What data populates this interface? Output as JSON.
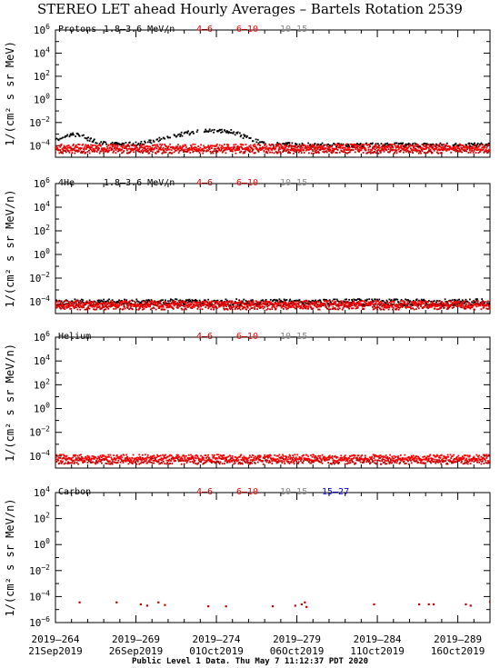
{
  "title": "STEREO LET ahead Hourly Averages – Bartels Rotation 2539",
  "footer": "Public Level 1 Data. Thu May  7 11:12:37 PDT 2020",
  "colors": {
    "black": "#000000",
    "dark_red": "#c00000",
    "red": "#ff0000",
    "gray": "#888888",
    "blue": "#0000ff"
  },
  "chart_data": [
    {
      "type": "scatter",
      "species": "Protons",
      "energy_label": "1.8–3.6 MeV/n",
      "ylabel": "1/(cm² s sr MeV)",
      "yscale": "log",
      "ylim_exp": [
        -5,
        6
      ],
      "ytick_exps": [
        6,
        4,
        2,
        0,
        -2,
        -4
      ],
      "xlim_doy": [
        264.0,
        291.0
      ],
      "legend": [
        {
          "label": "4–6",
          "color": "#c00000"
        },
        {
          "label": "6–10",
          "color": "#ff0000"
        },
        {
          "label": "10–15",
          "color": "#888888"
        }
      ],
      "series": [
        {
          "name": "1.8–3.6 MeV/n",
          "color": "#000000",
          "shape": "curve",
          "profile": [
            [
              264.0,
              -3.6
            ],
            [
              264.5,
              -3.2
            ],
            [
              265.0,
              -3.0
            ],
            [
              265.5,
              -3.1
            ],
            [
              266.0,
              -3.4
            ],
            [
              266.8,
              -3.7
            ],
            [
              267.5,
              -3.85
            ],
            [
              268.5,
              -3.9
            ],
            [
              269.5,
              -3.75
            ],
            [
              270.5,
              -3.45
            ],
            [
              271.5,
              -3.1
            ],
            [
              272.5,
              -2.85
            ],
            [
              273.5,
              -2.7
            ],
            [
              274.5,
              -2.7
            ],
            [
              275.0,
              -2.8
            ],
            [
              275.5,
              -3.1
            ],
            [
              276.2,
              -3.5
            ],
            [
              277.0,
              -3.8
            ],
            [
              278.5,
              -3.9
            ],
            [
              280.0,
              -3.95
            ],
            [
              283.0,
              -3.95
            ],
            [
              286.0,
              -3.95
            ],
            [
              289.0,
              -3.95
            ],
            [
              291.0,
              -3.95
            ]
          ]
        },
        {
          "name": "4–6",
          "color": "#c00000",
          "shape": "band",
          "y_exp": -4.4
        },
        {
          "name": "6–10",
          "color": "#ff0000",
          "shape": "band",
          "y_exp": -4.15
        }
      ]
    },
    {
      "type": "scatter",
      "species": "4He",
      "energy_label": "1.8–3.6 MeV/n",
      "ylabel": "1/(cm² s sr MeV/n)",
      "yscale": "log",
      "ylim_exp": [
        -5,
        6
      ],
      "ytick_exps": [
        6,
        4,
        2,
        0,
        -2,
        -4
      ],
      "xlim_doy": [
        264.0,
        291.0
      ],
      "legend": [
        {
          "label": "4–6",
          "color": "#c00000"
        },
        {
          "label": "6–10",
          "color": "#ff0000"
        },
        {
          "label": "10–15",
          "color": "#888888"
        }
      ],
      "series": [
        {
          "name": "1.8–3.6 MeV/n",
          "color": "#000000",
          "shape": "band",
          "y_exp": -4.05
        },
        {
          "name": "4–6",
          "color": "#c00000",
          "shape": "band",
          "y_exp": -4.4
        },
        {
          "name": "6–10",
          "color": "#ff0000",
          "shape": "band",
          "y_exp": -4.2
        }
      ]
    },
    {
      "type": "scatter",
      "species": "Helium",
      "energy_label": "",
      "ylabel": "1/(cm² s sr MeV/n)",
      "yscale": "log",
      "ylim_exp": [
        -5,
        6
      ],
      "ytick_exps": [
        6,
        4,
        2,
        0,
        -2,
        -4
      ],
      "xlim_doy": [
        264.0,
        291.0
      ],
      "legend": [
        {
          "label": "4–6",
          "color": "#c00000"
        },
        {
          "label": "6–10",
          "color": "#ff0000"
        },
        {
          "label": "10–15",
          "color": "#888888"
        }
      ],
      "series": [
        {
          "name": "4–6",
          "color": "#c00000",
          "shape": "band",
          "y_exp": -4.4
        },
        {
          "name": "6–10",
          "color": "#ff0000",
          "shape": "band",
          "y_exp": -4.15
        }
      ]
    },
    {
      "type": "scatter",
      "species": "Carbon",
      "energy_label": "",
      "ylabel": "1/(cm² s sr MeV/n)",
      "yscale": "log",
      "ylim_exp": [
        -6,
        4
      ],
      "ytick_exps": [
        4,
        2,
        0,
        -2,
        -4,
        -6
      ],
      "xlim_doy": [
        264.0,
        291.0
      ],
      "legend": [
        {
          "label": "4–6",
          "color": "#c00000"
        },
        {
          "label": "6–10",
          "color": "#ff0000"
        },
        {
          "label": "10–15",
          "color": "#888888"
        },
        {
          "label": "15–27",
          "color": "#0000ff"
        }
      ],
      "series": [
        {
          "name": "4–6",
          "color": "#c00000",
          "shape": "points",
          "points": [
            [
              265.5,
              -4.45
            ],
            [
              267.8,
              -4.45
            ],
            [
              269.3,
              -4.6
            ],
            [
              269.7,
              -4.7
            ],
            [
              270.4,
              -4.45
            ],
            [
              270.8,
              -4.65
            ],
            [
              273.5,
              -4.75
            ],
            [
              274.6,
              -4.75
            ],
            [
              277.5,
              -4.75
            ],
            [
              278.9,
              -4.7
            ],
            [
              279.3,
              -4.6
            ],
            [
              279.5,
              -4.45
            ],
            [
              279.6,
              -4.8
            ],
            [
              283.8,
              -4.6
            ],
            [
              286.6,
              -4.6
            ],
            [
              287.2,
              -4.6
            ],
            [
              287.5,
              -4.6
            ],
            [
              289.5,
              -4.6
            ],
            [
              289.8,
              -4.7
            ],
            [
              291.0,
              -4.4
            ]
          ]
        }
      ]
    }
  ],
  "x_axis": {
    "ticks": [
      {
        "doy": 264,
        "line1": "2019–264",
        "line2": "21Sep2019"
      },
      {
        "doy": 269,
        "line1": "2019–269",
        "line2": "26Sep2019"
      },
      {
        "doy": 274,
        "line1": "2019–274",
        "line2": "01Oct2019"
      },
      {
        "doy": 279,
        "line1": "2019–279",
        "line2": "06Oct2019"
      },
      {
        "doy": 284,
        "line1": "2019–284",
        "line2": "11Oct2019"
      },
      {
        "doy": 289,
        "line1": "2019–289",
        "line2": "16Oct2019"
      }
    ]
  }
}
